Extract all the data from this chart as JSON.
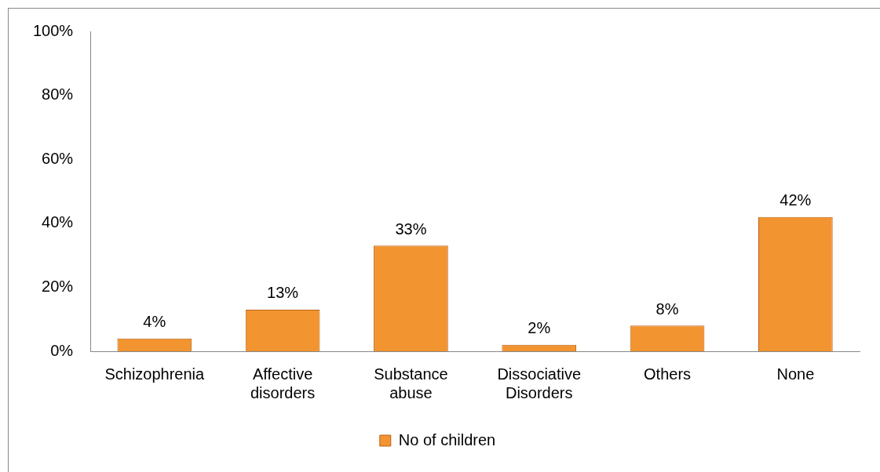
{
  "chart_data": {
    "type": "bar",
    "categories": [
      "Schizophrenia",
      "Affective disorders",
      "Substance abuse",
      "Dissociative Disorders",
      "Others",
      "None"
    ],
    "series": [
      {
        "name": "No of children",
        "color": "#f29430",
        "values": [
          4,
          13,
          33,
          2,
          8,
          42
        ],
        "value_labels": [
          "4%",
          "13%",
          "33%",
          "2%",
          "8%",
          "42%"
        ]
      }
    ],
    "ylim": [
      0,
      100
    ],
    "yticks": [
      {
        "value": 0,
        "label": "0%"
      },
      {
        "value": 20,
        "label": "20%"
      },
      {
        "value": 40,
        "label": "40%"
      },
      {
        "value": 60,
        "label": "60%"
      },
      {
        "value": 80,
        "label": "80%"
      },
      {
        "value": 100,
        "label": "100%"
      }
    ],
    "grid": false,
    "legend": "bottom"
  }
}
